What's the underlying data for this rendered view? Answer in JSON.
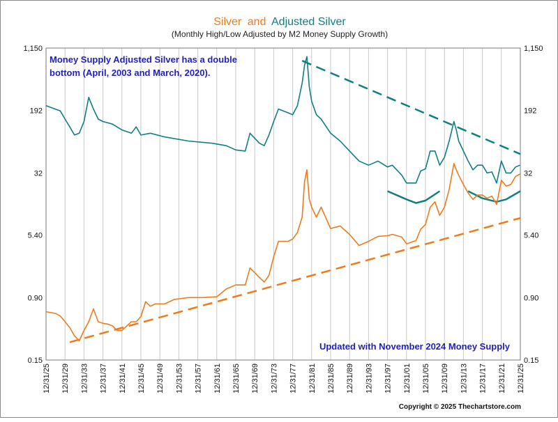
{
  "chart_data": {
    "type": "line",
    "title_parts": [
      "Silver",
      "and",
      "Adjusted Silver"
    ],
    "subtitle": "(Monthly High/Low Adjusted by M2 Money Supply Growth)",
    "y_scale": "log",
    "ylim": [
      0.15,
      1150
    ],
    "y_ticks": [
      "1,150",
      "192",
      "32",
      "5.40",
      "0.90",
      "0.15"
    ],
    "y_tick_values": [
      1150,
      192,
      32,
      5.4,
      0.9,
      0.15
    ],
    "x_range": [
      1925,
      2025
    ],
    "x_ticks": [
      "12/31/25",
      "12/31/29",
      "12/31/33",
      "12/31/37",
      "12/31/41",
      "12/31/45",
      "12/31/49",
      "12/31/53",
      "12/31/57",
      "12/31/61",
      "12/31/65",
      "12/31/69",
      "12/31/73",
      "12/31/77",
      "12/31/81",
      "12/31/85",
      "12/31/89",
      "12/31/93",
      "12/31/97",
      "12/31/01",
      "12/31/05",
      "12/31/09",
      "12/31/13",
      "12/31/17",
      "12/31/21",
      "12/31/25"
    ],
    "x_tick_years": [
      1925,
      1929,
      1933,
      1937,
      1941,
      1945,
      1949,
      1953,
      1957,
      1961,
      1965,
      1969,
      1973,
      1977,
      1981,
      1985,
      1989,
      1993,
      1997,
      2001,
      2005,
      2009,
      2013,
      2017,
      2021,
      2025
    ],
    "grid": true,
    "annotations": {
      "note": "Money Supply Adjusted Silver has a double bottom (April, 2003 and March, 2020).",
      "updated": "Updated with November 2024 Money Supply",
      "copyright": "Copyright © 2025 Thechartstore.com"
    },
    "colors": {
      "silver": "#f07a1a",
      "adjusted": "#0f7f7f",
      "note_text": "#1f1fbf",
      "grid": "#c9c9c9"
    },
    "series": [
      {
        "name": "Silver",
        "x": [
          1925,
          1927,
          1928,
          1929,
          1930,
          1931,
          1932,
          1933,
          1934,
          1935,
          1936,
          1937,
          1938,
          1939,
          1940,
          1941,
          1943,
          1944,
          1945,
          1946,
          1947,
          1948,
          1950,
          1952,
          1955,
          1958,
          1961,
          1963,
          1965,
          1967,
          1968,
          1970,
          1971,
          1972,
          1973,
          1974,
          1976,
          1977,
          1978,
          1979,
          1979.5,
          1980,
          1980.5,
          1981,
          1982,
          1983,
          1985,
          1987,
          1989,
          1991,
          1993,
          1995,
          1997,
          1998,
          2000,
          2001,
          2003,
          2004,
          2005,
          2006,
          2007,
          2008,
          2009,
          2010,
          2011,
          2011.5,
          2012,
          2013,
          2014,
          2015,
          2016,
          2017,
          2018,
          2019,
          2020,
          2021,
          2022,
          2023,
          2024,
          2024.9
        ],
        "y": [
          0.6,
          0.57,
          0.53,
          0.45,
          0.38,
          0.3,
          0.26,
          0.35,
          0.45,
          0.65,
          0.45,
          0.43,
          0.42,
          0.4,
          0.35,
          0.35,
          0.45,
          0.45,
          0.52,
          0.8,
          0.7,
          0.75,
          0.75,
          0.85,
          0.9,
          0.9,
          0.92,
          1.15,
          1.29,
          1.29,
          2.1,
          1.6,
          1.4,
          1.7,
          2.9,
          4.5,
          4.5,
          4.8,
          5.8,
          9,
          25,
          35,
          15,
          12,
          9,
          12,
          6.5,
          7,
          5.5,
          4,
          4.5,
          5.2,
          5.3,
          5.5,
          5.1,
          4.2,
          4.6,
          6.4,
          7.3,
          12,
          14,
          9.5,
          12,
          20,
          42,
          35,
          30,
          23,
          18,
          15,
          17,
          17,
          15.5,
          16.5,
          13,
          26,
          22,
          23,
          29,
          31
        ]
      },
      {
        "name": "Adjusted Silver",
        "x": [
          1925,
          1926,
          1928,
          1929,
          1930,
          1931,
          1932,
          1933,
          1934,
          1935,
          1936,
          1937,
          1939,
          1941,
          1943,
          1944,
          1945,
          1947,
          1950,
          1955,
          1960,
          1963,
          1965,
          1967,
          1968,
          1970,
          1971,
          1972,
          1973,
          1974,
          1976,
          1977,
          1978,
          1979,
          1979.5,
          1980,
          1980.5,
          1981,
          1982,
          1983,
          1985,
          1987,
          1989,
          1991,
          1993,
          1995,
          1997,
          1998,
          2000,
          2001,
          2003,
          2004,
          2005,
          2006,
          2007,
          2008,
          2009,
          2010,
          2011,
          2011.5,
          2012,
          2013,
          2014,
          2015,
          2016,
          2017,
          2018,
          2019,
          2020,
          2021,
          2022,
          2023,
          2024,
          2024.9
        ],
        "y": [
          220,
          210,
          190,
          150,
          120,
          95,
          100,
          140,
          280,
          200,
          150,
          140,
          130,
          110,
          100,
          120,
          95,
          100,
          90,
          80,
          75,
          70,
          62,
          60,
          100,
          75,
          70,
          95,
          140,
          200,
          180,
          170,
          220,
          420,
          700,
          900,
          380,
          250,
          170,
          150,
          100,
          80,
          60,
          45,
          40,
          45,
          38,
          40,
          30,
          24,
          24,
          34,
          36,
          60,
          60,
          40,
          50,
          80,
          140,
          110,
          80,
          60,
          45,
          35,
          40,
          40,
          32,
          33,
          24,
          45,
          32,
          32,
          38,
          40
        ]
      }
    ],
    "trend_lines": [
      {
        "name": "support",
        "color": "#f07a1a",
        "x": [
          1930,
          2025
        ],
        "y": [
          0.25,
          8.8
        ]
      },
      {
        "name": "resistance",
        "color": "#0f7f7f",
        "x": [
          1979,
          2025
        ],
        "y": [
          800,
          55
        ]
      }
    ],
    "double_bottom_arcs": [
      {
        "x": [
          1997,
          2001,
          2003,
          2005,
          2008
        ],
        "y": [
          19,
          15,
          13.5,
          14.5,
          19
        ]
      },
      {
        "x": [
          2014,
          2017,
          2020,
          2022,
          2025
        ],
        "y": [
          19,
          15.5,
          14,
          15,
          19
        ]
      }
    ]
  }
}
